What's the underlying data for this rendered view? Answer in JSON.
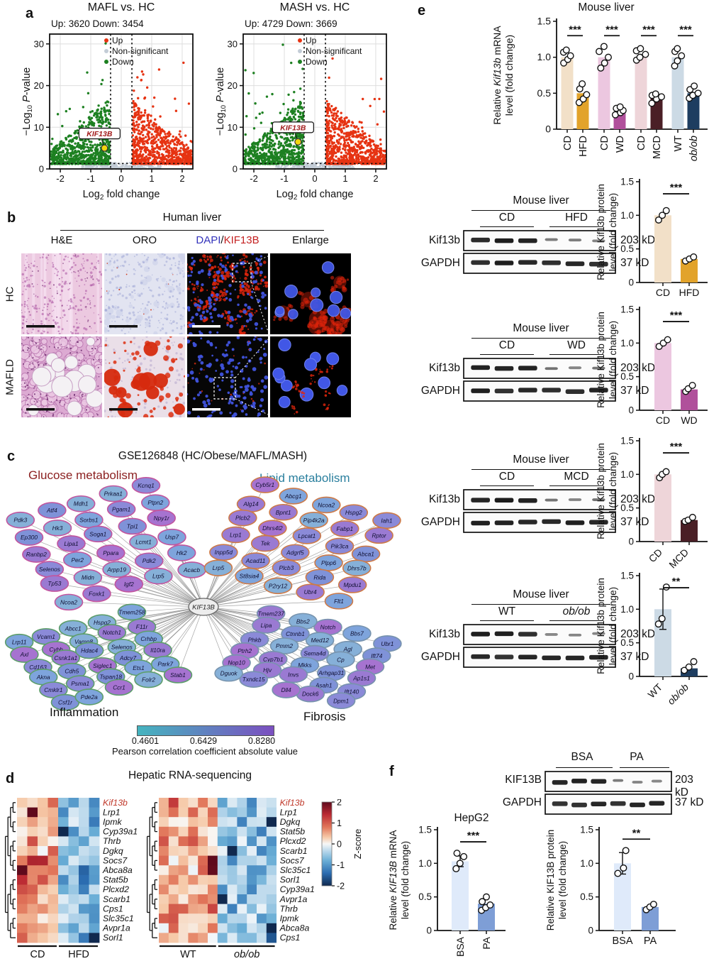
{
  "panels": {
    "a": "a",
    "b": "b",
    "c": "c",
    "d": "d",
    "e": "e",
    "f": "f"
  },
  "panel_b": {
    "header": "Human liver",
    "columns": [
      "H&E",
      "ORO",
      "DAPI/KIF13B",
      "Enlarge"
    ],
    "dapi_label": {
      "dapi": "DAPI",
      "slash": "/",
      "kif": "KIF13B",
      "dapi_color": "#3333bb",
      "kif_color": "#c42222"
    },
    "rows": [
      "HC",
      "MAFLD"
    ]
  },
  "network": {
    "title": "GSE126848 (HC/Obese/MAFL/MASH)",
    "hub": "KIF13B",
    "clusters": [
      {
        "name": "Glucose metabolism",
        "title_color": "#8b1f1f",
        "ring": "#c2559e",
        "nodes": [
          "Pdk3",
          "Atf4",
          "Mdh1",
          "Prkaa1",
          "Kcnq1",
          "Ep300",
          "Hk3",
          "Sorbs1",
          "Pgam1",
          "Ptpn2",
          "Ranbp2",
          "Lipa1",
          "Soga1",
          "Tpi1",
          "Npy1r",
          "Selenos",
          "Per2",
          "Ppara",
          "Lcmt1",
          "Usp7",
          "Tp53",
          "Midn",
          "Arpp19",
          "Pdk2",
          "Hk2",
          "Ncoa2",
          "Foxk1",
          "Igf2",
          "Lrp5",
          "Acacb"
        ]
      },
      {
        "name": "Lipid metabolism",
        "title_color": "#2a7f9e",
        "ring": "#cd7a48",
        "nodes": [
          "Iah1",
          "Hspg2",
          "Ncoa2",
          "Abcg1",
          "Cyb5r1",
          "Rptor",
          "Fabp1",
          "Pip4k2a",
          "Bpnt1",
          "Alg14",
          "Abca1",
          "Pik3ca",
          "Lpcat1",
          "Dhrs4l2",
          "Plcb2",
          "Dhrs7b",
          "Plpp6",
          "Adgrf5",
          "Tek",
          "Lrp1",
          "Mpdu1",
          "Rida",
          "Plcb3",
          "Acad11",
          "Inpp5d",
          "Flt1",
          "Ubr4",
          "P2ry12",
          "St8sia4",
          "Lrp5"
        ]
      },
      {
        "name": "Inflammation",
        "title_color": "#1a1a1a",
        "ring": "#5d9e6b",
        "nodes": [
          "Lrp11",
          "Vcam1",
          "Abcc1",
          "Hspg2",
          "Tmem258",
          "Axl",
          "Cybb",
          "Vamp8",
          "Notch1",
          "F11r",
          "Cd163",
          "Csnk1a1",
          "Hdac4",
          "Selenos",
          "Crhbp",
          "Akna",
          "Cdh5",
          "Siglec1",
          "Adcy7",
          "Il10ra",
          "Cmklr1",
          "Psma1",
          "Tspan18",
          "Ets1",
          "Park7",
          "Csf1r",
          "Pde2a",
          "Ccr1",
          "Folr2",
          "Stab1"
        ]
      },
      {
        "name": "Fibrosis",
        "title_color": "#1a1a1a",
        "ring": "#7793ad",
        "nodes": [
          "Ubr1",
          "Bbs7",
          "Notch",
          "Bbs2",
          "Tmem237",
          "Ift74",
          "Agl",
          "Med12",
          "Ctnnb1",
          "Lipa",
          "Met",
          "Cp",
          "Sema4d",
          "Pmm2",
          "Phkb",
          "Ap1s1",
          "Arhgap31",
          "Mkks",
          "Cyp7b1",
          "Ptrh2",
          "Ift140",
          "Asah1",
          "Invs",
          "Hjv",
          "Nop10",
          "Dpm1",
          "Dock6",
          "Dll4",
          "Txndc15",
          "Dguok"
        ]
      }
    ],
    "colorbar": {
      "ticks": [
        "0.4601",
        "0.6429",
        "0.8280"
      ],
      "label": "Pearson correlation coefficient absolute value",
      "from": "#45b4bf",
      "to": "#7b4fc0"
    }
  },
  "heatmaps": {
    "title": "Hepatic RNA-sequencing",
    "zscore_label": "Z-score",
    "zticks": [
      "2",
      "1",
      "0",
      "-1",
      "-2"
    ]
  },
  "western_blots": [
    {
      "tissue": "Mouse liver",
      "groups": [
        "CD",
        "HFD"
      ],
      "rows": [
        {
          "protein": "Kif13b",
          "mw": "203 kD"
        },
        {
          "protein": "GAPDH",
          "mw": "37 kD"
        }
      ]
    },
    {
      "tissue": "Mouse liver",
      "groups": [
        "CD",
        "WD"
      ],
      "rows": [
        {
          "protein": "Kif13b",
          "mw": "203 kD"
        },
        {
          "protein": "GAPDH",
          "mw": "37 kD"
        }
      ]
    },
    {
      "tissue": "Mouse liver",
      "groups": [
        "CD",
        "MCD"
      ],
      "rows": [
        {
          "protein": "Kif13b",
          "mw": "203 kD"
        },
        {
          "protein": "GAPDH",
          "mw": "37 kD"
        }
      ]
    },
    {
      "tissue": "Mouse liver",
      "groups": [
        "WT",
        "ob/ob"
      ],
      "rows": [
        {
          "protein": "Kif13b",
          "mw": "203 kD"
        },
        {
          "protein": "GAPDH",
          "mw": "37 kD"
        }
      ]
    }
  ],
  "hepg2": {
    "title": "HepG2",
    "blot": {
      "groups": [
        "BSA",
        "PA"
      ],
      "rows": [
        {
          "protein": "KIF13B",
          "mw": "203 kD"
        },
        {
          "protein": "GAPDH",
          "mw": "37 kD"
        }
      ]
    }
  },
  "chart_data": [
    {
      "id": "volcano_mafl",
      "type": "scatter",
      "title": "MAFL vs. HC",
      "counts_label": "Up: 3620 Down: 3454",
      "up": 3620,
      "down": 3454,
      "xlabel": "Log2 fold change",
      "ylabel": "-Log10 P-value",
      "xlim": [
        -2.35,
        2.35
      ],
      "ylim": [
        0,
        31
      ],
      "xticks": [
        -2,
        -1,
        0,
        1,
        2
      ],
      "yticks": [
        0,
        10,
        20,
        30
      ],
      "legend": [
        {
          "label": "Up",
          "color": "#e63312"
        },
        {
          "label": "Non-significant",
          "color": "#c3ccd6"
        },
        {
          "label": "Down",
          "color": "#1d8021"
        }
      ],
      "highlight": {
        "gene": "KIF13B",
        "x": -0.55,
        "y": 5,
        "color": "#f2d50f"
      },
      "thresholds": {
        "log2fc": 0.35,
        "neglogp": 1.3
      }
    },
    {
      "id": "volcano_mash",
      "type": "scatter",
      "title": "MASH vs. HC",
      "counts_label": "Up: 4729 Down: 3669",
      "up": 4729,
      "down": 3669,
      "xlabel": "Log2 fold change",
      "ylabel": "-Log10 P-value",
      "xlim": [
        -2.35,
        2.35
      ],
      "ylim": [
        0,
        31
      ],
      "xticks": [
        -2,
        -1,
        0,
        1,
        2
      ],
      "yticks": [
        0,
        10,
        20,
        30
      ],
      "legend": [
        {
          "label": "Up",
          "color": "#e63312"
        },
        {
          "label": "Non-significant",
          "color": "#c3ccd6"
        },
        {
          "label": "Down",
          "color": "#1d8021"
        }
      ],
      "highlight": {
        "gene": "KIF13B",
        "x": -0.55,
        "y": 6.5,
        "color": "#f2d50f"
      },
      "thresholds": {
        "log2fc": 0.35,
        "neglogp": 1.3
      }
    },
    {
      "id": "e_mrna",
      "type": "bar",
      "title": "Mouse liver",
      "ylabel_lines": [
        "Relative Kif13b mRNA",
        "level (fold change)"
      ],
      "ylabel_italic": "Kif13b",
      "categories": [
        "CD",
        "HFD",
        "CD",
        "WD",
        "CD",
        "MCD",
        "WT",
        "ob/ob"
      ],
      "values": [
        1.0,
        0.5,
        1.0,
        0.22,
        1.0,
        0.43,
        1.0,
        0.5
      ],
      "bar_colors": [
        "#f2e0c8",
        "#e2a32b",
        "#ecc7e0",
        "#b0509b",
        "#eed5d9",
        "#4a1f26",
        "#ccdae5",
        "#1e3d60"
      ],
      "points": [
        [
          0.92,
          0.97,
          1.02,
          1.07,
          1.1
        ],
        [
          0.37,
          0.42,
          0.48,
          0.56,
          0.63
        ],
        [
          0.85,
          0.92,
          1.0,
          1.08,
          1.15
        ],
        [
          0.2,
          0.23,
          0.26,
          0.29,
          0.31
        ],
        [
          0.96,
          1.0,
          1.04,
          1.09,
          1.12
        ],
        [
          0.36,
          0.42,
          0.45,
          0.47,
          0.49
        ],
        [
          0.88,
          0.95,
          1.02,
          1.08,
          1.12
        ],
        [
          0.43,
          0.47,
          0.5,
          0.55,
          0.6
        ]
      ],
      "sig": [
        {
          "pair": [
            0,
            1
          ],
          "label": "***"
        },
        {
          "pair": [
            2,
            3
          ],
          "label": "***"
        },
        {
          "pair": [
            4,
            5
          ],
          "label": "***"
        },
        {
          "pair": [
            6,
            7
          ],
          "label": "***"
        }
      ],
      "ylim": [
        0,
        1.5
      ],
      "yticks": [
        "0",
        "0.5",
        "1.0",
        "1.5"
      ]
    },
    {
      "id": "b1_protein",
      "type": "bar",
      "ylabel_lines": [
        "Relative Kif13b protein",
        "level (fold change)"
      ],
      "ylabel_italic": null,
      "categories": [
        "CD",
        "HFD"
      ],
      "values": [
        1.0,
        0.35
      ],
      "bar_colors": [
        "#f2e0c8",
        "#e2a32b"
      ],
      "points": [
        [
          0.93,
          1.0,
          1.07
        ],
        [
          0.32,
          0.35,
          0.38
        ]
      ],
      "sig": [
        {
          "pair": [
            0,
            1
          ],
          "label": "***"
        }
      ],
      "ylim": [
        0,
        1.5
      ],
      "yticks": [
        "0",
        "0.5",
        "1.0",
        "1.5"
      ]
    },
    {
      "id": "b2_protein",
      "type": "bar",
      "ylabel_lines": [
        "Relative Kif13b protein",
        "level (fold change)"
      ],
      "ylabel_italic": null,
      "categories": [
        "CD",
        "WD"
      ],
      "values": [
        1.0,
        0.31
      ],
      "bar_colors": [
        "#ecc7e0",
        "#b0509b"
      ],
      "points": [
        [
          0.95,
          1.0,
          1.05
        ],
        [
          0.28,
          0.32,
          0.37
        ]
      ],
      "sig": [
        {
          "pair": [
            0,
            1
          ],
          "label": "***"
        }
      ],
      "ylim": [
        0,
        1.5
      ],
      "yticks": [
        "0",
        "0.5",
        "1.0",
        "1.5"
      ]
    },
    {
      "id": "b3_protein",
      "type": "bar",
      "ylabel_lines": [
        "Relative Kif13b protein",
        "level (fold change)"
      ],
      "ylabel_italic": null,
      "categories": [
        "CD",
        "MCD"
      ],
      "values": [
        1.0,
        0.32
      ],
      "bar_colors": [
        "#eed5d9",
        "#4a1f26"
      ],
      "points": [
        [
          0.95,
          1.0,
          1.04
        ],
        [
          0.3,
          0.32,
          0.36
        ]
      ],
      "sig": [
        {
          "pair": [
            0,
            1
          ],
          "label": "***"
        }
      ],
      "ylim": [
        0,
        1.5
      ],
      "yticks": [
        "0",
        "0.5",
        "1.0",
        "1.5"
      ]
    },
    {
      "id": "b4_protein",
      "type": "bar",
      "ylabel_lines": [
        "Relative Kif13b protein",
        "level (fold change)"
      ],
      "ylabel_italic": null,
      "categories": [
        "WT",
        "ob/ob"
      ],
      "values": [
        1.0,
        0.12
      ],
      "bar_colors": [
        "#ccdae5",
        "#1e3d60"
      ],
      "points": [
        [
          0.78,
          0.86,
          1.33
        ],
        [
          0.09,
          0.14,
          0.22
        ]
      ],
      "error_bars": [
        {
          "bar": 0,
          "lo": 0.7,
          "hi": 1.3
        }
      ],
      "sig": [
        {
          "pair": [
            0,
            1
          ],
          "label": "**"
        }
      ],
      "ylim": [
        0,
        1.5
      ],
      "yticks": [
        "0",
        "0.5",
        "1.0",
        "1.5"
      ]
    },
    {
      "id": "f_mrna",
      "type": "bar",
      "title": "HepG2",
      "ylabel_lines": [
        "Relative KIF13B mRNA",
        "level (fold change)"
      ],
      "ylabel_italic": "KIF13B",
      "categories": [
        "BSA",
        "PA"
      ],
      "values": [
        1.03,
        0.4
      ],
      "bar_colors": [
        "#dfeafa",
        "#7e9ed6"
      ],
      "points": [
        [
          0.92,
          1.0,
          1.1,
          1.15
        ],
        [
          0.3,
          0.34,
          0.38,
          0.43,
          0.5
        ]
      ],
      "error_bars": [
        {
          "bar": 0,
          "lo": 0.95,
          "hi": 1.11
        }
      ],
      "sig": [
        {
          "pair": [
            0,
            1
          ],
          "label": "***"
        }
      ],
      "ylim": [
        0,
        1.5
      ],
      "yticks": [
        "0",
        "0.5",
        "1.0",
        "1.5"
      ]
    },
    {
      "id": "f_protein",
      "type": "bar",
      "ylabel_lines": [
        "Relative KIF13B protein",
        "level (fold change)"
      ],
      "ylabel_italic": null,
      "categories": [
        "BSA",
        "PA"
      ],
      "values": [
        1.0,
        0.35
      ],
      "bar_colors": [
        "#dfeafa",
        "#7e9ed6"
      ],
      "points": [
        [
          0.85,
          0.93,
          1.19
        ],
        [
          0.31,
          0.35,
          0.39
        ]
      ],
      "error_bars": [
        {
          "bar": 0,
          "lo": 0.84,
          "hi": 1.16
        }
      ],
      "sig": [
        {
          "pair": [
            0,
            1
          ],
          "label": "**"
        }
      ],
      "ylim": [
        0,
        1.5
      ],
      "yticks": [
        "0",
        "0.5",
        "1.0",
        "1.5"
      ]
    },
    {
      "id": "heatmap_cd_hfd",
      "type": "heatmap",
      "value_kind": "Z-score",
      "value_range": [
        -2,
        2
      ],
      "genes": [
        "Kif13b",
        "Lrp1",
        "Ipmk",
        "Cyp39a1",
        "Thrb",
        "Dgkq",
        "Socs7",
        "Abca8a",
        "Stat5b",
        "Plcxd2",
        "Scarb1",
        "Cps1",
        "Slc35c1",
        "Avpr1a",
        "Sorl1"
      ],
      "highlight_gene": "Kif13b",
      "highlight_color": "#c0392b",
      "groups": [
        {
          "label": "CD",
          "cols": 4,
          "pattern": "high"
        },
        {
          "label": "HFD",
          "cols": 4,
          "pattern": "low"
        }
      ]
    },
    {
      "id": "heatmap_wt_obob",
      "type": "heatmap",
      "value_kind": "Z-score",
      "value_range": [
        -2,
        2
      ],
      "genes": [
        "Kif13b",
        "Lrp1",
        "Dgkq",
        "Stat5b",
        "Plcxd2",
        "Scarb1",
        "Socs7",
        "Slc35c1",
        "Sorl1",
        "Cyp39a1",
        "Avpr1a",
        "Thrb",
        "Ipmk",
        "Abca8a",
        "Cps1"
      ],
      "highlight_gene": "Kif13b",
      "highlight_color": "#c0392b",
      "groups": [
        {
          "label": "WT",
          "cols": 6,
          "pattern": "high"
        },
        {
          "label": "ob/ob",
          "cols": 6,
          "pattern": "low"
        }
      ]
    }
  ]
}
